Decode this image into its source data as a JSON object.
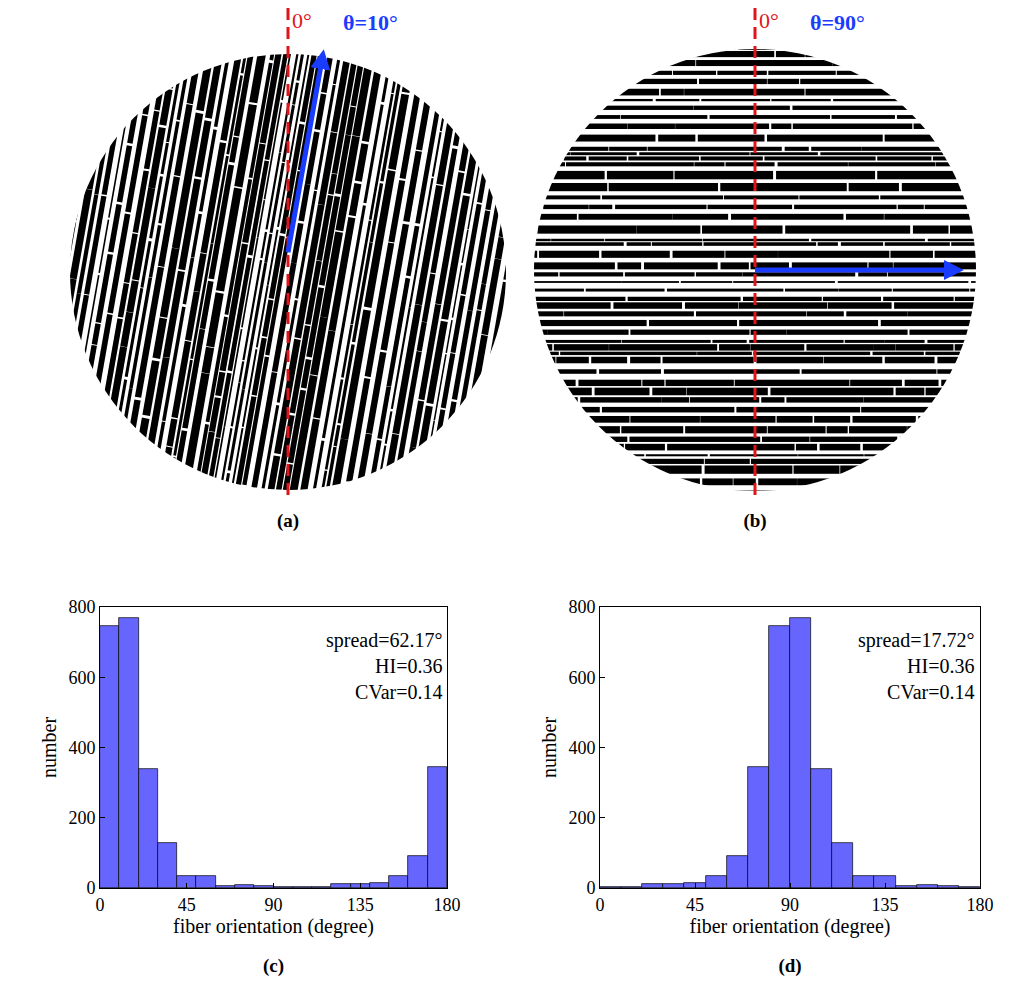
{
  "images": [
    {
      "panel_label": "(a)",
      "reference_label": "0°",
      "angle_label": "θ=10°",
      "theta": 10
    },
    {
      "panel_label": "(b)",
      "reference_label": "0°",
      "angle_label": "θ=90°",
      "theta": 90
    }
  ],
  "chart_data": [
    {
      "type": "histogram",
      "panel_label": "(c)",
      "x_label": "fiber orientation (degree)",
      "y_label": "number",
      "bins": [
        0,
        10,
        20,
        30,
        40,
        50,
        60,
        70,
        80,
        90,
        100,
        110,
        120,
        130,
        140,
        150,
        160,
        170,
        180
      ],
      "values": [
        745,
        768,
        340,
        128,
        33,
        33,
        5,
        8,
        5,
        3,
        3,
        3,
        10,
        10,
        15,
        35,
        90,
        345
      ],
      "color": "#6666ff",
      "xlim": [
        0,
        180
      ],
      "xticks": [
        0,
        45,
        90,
        135,
        180
      ],
      "ylim": [
        0,
        800
      ],
      "yticks": [
        0,
        200,
        400,
        600,
        800
      ],
      "grid": false,
      "annotations": [
        "spread=62.17°",
        "HI=0.36",
        "CVar=0.14"
      ]
    },
    {
      "type": "histogram",
      "panel_label": "(d)",
      "x_label": "fiber orientation (degree)",
      "y_label": "number",
      "bins": [
        0,
        10,
        20,
        30,
        40,
        50,
        60,
        70,
        80,
        90,
        100,
        110,
        120,
        130,
        140,
        150,
        160,
        170,
        180
      ],
      "values": [
        3,
        3,
        10,
        10,
        15,
        35,
        90,
        345,
        745,
        768,
        340,
        128,
        33,
        33,
        5,
        8,
        5,
        3
      ],
      "color": "#6666ff",
      "xlim": [
        0,
        180
      ],
      "xticks": [
        0,
        45,
        90,
        135,
        180
      ],
      "ylim": [
        0,
        800
      ],
      "yticks": [
        0,
        200,
        400,
        600,
        800
      ],
      "grid": false,
      "annotations": [
        "spread=17.72°",
        "HI=0.36",
        "CVar=0.14"
      ]
    }
  ]
}
